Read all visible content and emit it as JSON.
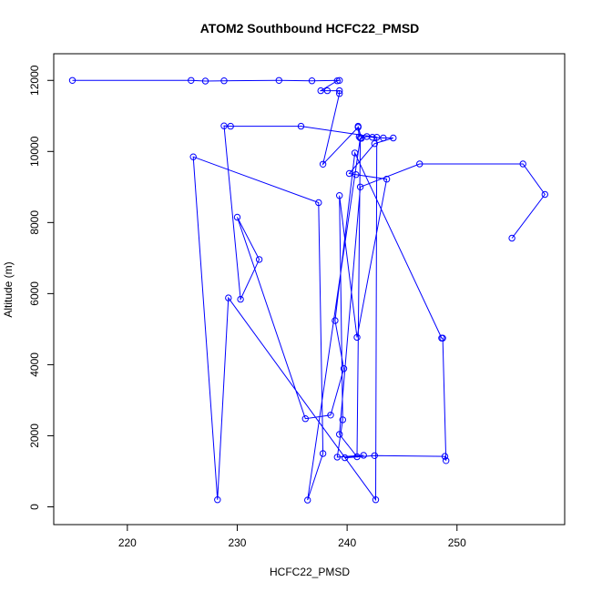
{
  "chart_data": {
    "type": "line",
    "title": "ATOM2 Southbound HCFC22_PMSD",
    "xlabel": "HCFC22_PMSD",
    "ylabel": "Altitude (m)",
    "xlim": [
      213.3,
      259.8
    ],
    "ylim": [
      -500,
      12750
    ],
    "xticks": [
      220,
      230,
      240,
      250
    ],
    "yticks": [
      0,
      2000,
      4000,
      6000,
      8000,
      10000,
      12000
    ],
    "grid": false,
    "legend": "none",
    "line_color": "#0000ff",
    "marker": "open-circle",
    "series": [
      {
        "x": [
          215.0,
          225.8,
          227.1,
          228.8,
          233.8,
          236.8,
          239.3,
          239.1,
          237.6,
          238.2,
          239.3,
          239.3,
          237.8,
          241.0,
          241.1,
          241.0,
          241.3,
          241.8,
          242.3,
          243.3,
          244.2,
          242.5,
          240.2,
          240.8,
          243.6,
          240.9,
          239.3,
          239.6,
          239.1,
          241.5,
          239.8,
          242.5,
          248.9,
          249.0,
          248.7,
          248.6,
          240.7,
          238.9,
          239.7,
          238.5,
          236.2,
          230.0,
          232.0,
          230.3,
          228.8,
          229.4,
          235.8,
          242.7,
          242.6,
          229.2,
          228.2,
          226.0,
          237.4,
          237.8,
          236.4,
          241.2,
          240.9,
          239.3,
          241.2,
          246.6,
          256.0,
          258.0,
          255.0
        ],
        "y": [
          12000,
          12000,
          11980,
          11990,
          12000,
          11990,
          12000,
          11990,
          11710,
          11710,
          11710,
          11630,
          9640,
          10680,
          10410,
          10710,
          10370,
          10420,
          10400,
          10380,
          10380,
          10220,
          9380,
          9350,
          9220,
          4770,
          8760,
          2450,
          1400,
          1450,
          1380,
          1440,
          1420,
          1300,
          4750,
          4750,
          9960,
          5240,
          3890,
          2580,
          2480,
          8150,
          6960,
          5840,
          10720,
          10710,
          10710,
          10400,
          200,
          5880,
          200,
          9850,
          8560,
          1500,
          190,
          10380,
          1410,
          2040,
          9000,
          9650,
          9650,
          8790,
          7560
        ]
      }
    ]
  }
}
